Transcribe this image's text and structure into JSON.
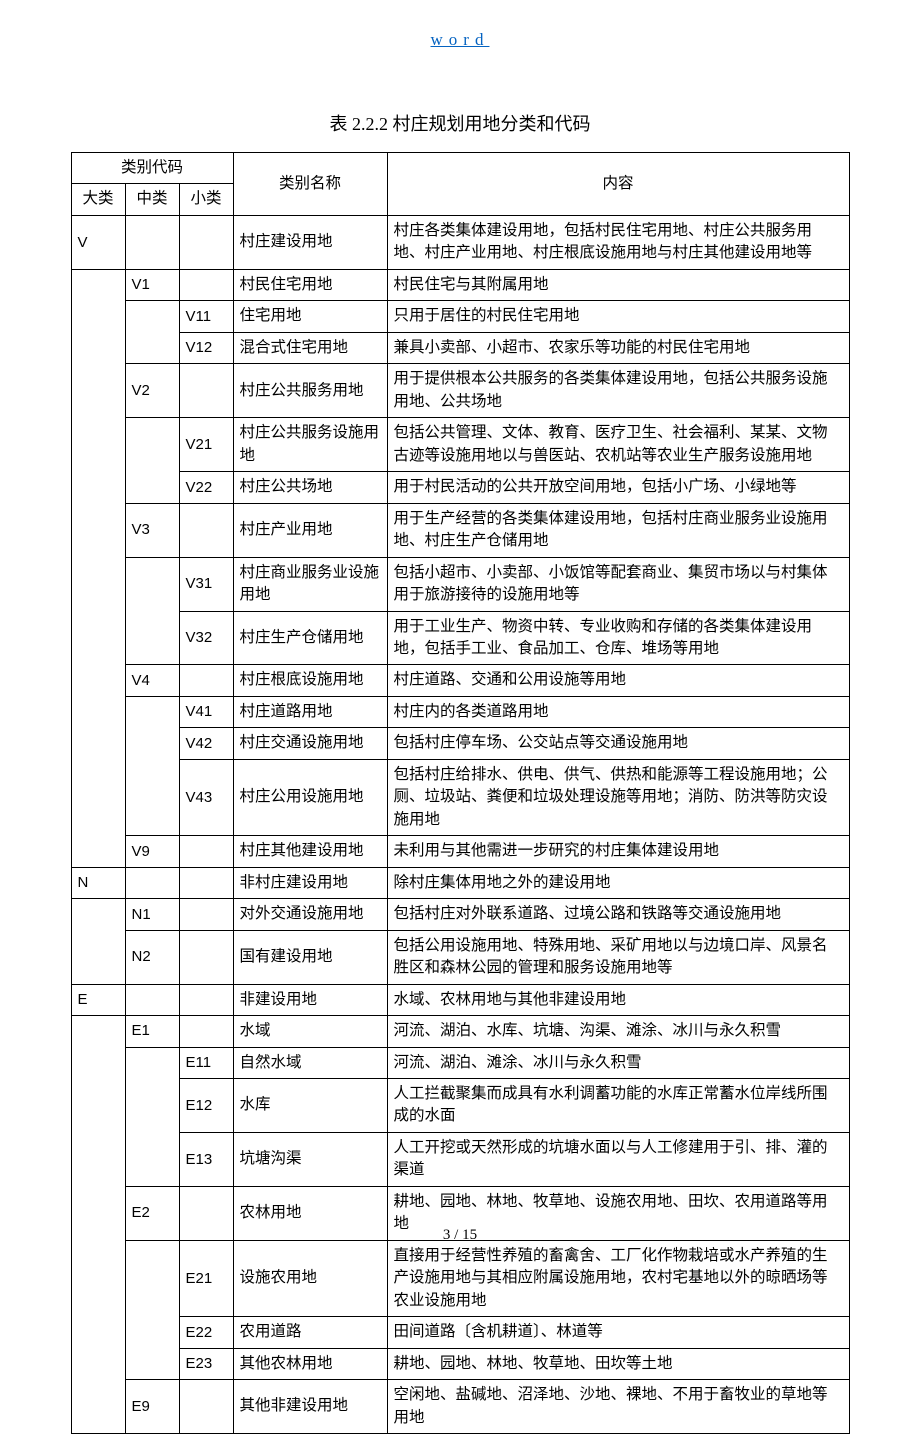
{
  "header": {
    "linkText": "word"
  },
  "title": "表 2.2.2 村庄规划用地分类和代码",
  "columns": {
    "codeGroup": "类别代码",
    "da": "大类",
    "zhong": "中类",
    "xiao": "小类",
    "name": "类别名称",
    "content": "内容"
  },
  "rows": [
    {
      "da": "V",
      "zhong": "",
      "xiao": "",
      "name": "村庄建设用地",
      "content": "村庄各类集体建设用地，包括村民住宅用地、村庄公共服务用地、村庄产业用地、村庄根底设施用地与村庄其他建设用地等"
    },
    {
      "da": "",
      "zhong": "V1",
      "xiao": "",
      "name": "村民住宅用地",
      "content": "村民住宅与其附属用地"
    },
    {
      "da": "",
      "zhong": "",
      "xiao": "V11",
      "name": "住宅用地",
      "content": "只用于居住的村民住宅用地"
    },
    {
      "da": "",
      "zhong": "",
      "xiao": "V12",
      "name": "混合式住宅用地",
      "content": "兼具小卖部、小超市、农家乐等功能的村民住宅用地"
    },
    {
      "da": "",
      "zhong": "V2",
      "xiao": "",
      "name": "村庄公共服务用地",
      "content": "用于提供根本公共服务的各类集体建设用地，包括公共服务设施用地、公共场地"
    },
    {
      "da": "",
      "zhong": "",
      "xiao": "V21",
      "name": "村庄公共服务设施用地",
      "content": "包括公共管理、文体、教育、医疗卫生、社会福利、某某、文物古迹等设施用地以与兽医站、农机站等农业生产服务设施用地"
    },
    {
      "da": "",
      "zhong": "",
      "xiao": "V22",
      "name": "村庄公共场地",
      "content": "用于村民活动的公共开放空间用地，包括小广场、小绿地等"
    },
    {
      "da": "",
      "zhong": "V3",
      "xiao": "",
      "name": "村庄产业用地",
      "content": "用于生产经营的各类集体建设用地，包括村庄商业服务业设施用地、村庄生产仓储用地"
    },
    {
      "da": "",
      "zhong": "",
      "xiao": "V31",
      "name": "村庄商业服务业设施用地",
      "content": "包括小超市、小卖部、小饭馆等配套商业、集贸市场以与村集体用于旅游接待的设施用地等"
    },
    {
      "da": "",
      "zhong": "",
      "xiao": "V32",
      "name": "村庄生产仓储用地",
      "content": "用于工业生产、物资中转、专业收购和存储的各类集体建设用地，包括手工业、食品加工、仓库、堆场等用地"
    },
    {
      "da": "",
      "zhong": "V4",
      "xiao": "",
      "name": "村庄根底设施用地",
      "content": "村庄道路、交通和公用设施等用地"
    },
    {
      "da": "",
      "zhong": "",
      "xiao": "V41",
      "name": "村庄道路用地",
      "content": "村庄内的各类道路用地"
    },
    {
      "da": "",
      "zhong": "",
      "xiao": "V42",
      "name": "村庄交通设施用地",
      "content": "包括村庄停车场、公交站点等交通设施用地"
    },
    {
      "da": "",
      "zhong": "",
      "xiao": "V43",
      "name": "村庄公用设施用地",
      "content": "包括村庄给排水、供电、供气、供热和能源等工程设施用地；公厕、垃圾站、粪便和垃圾处理设施等用地；消防、防洪等防灾设施用地"
    },
    {
      "da": "",
      "zhong": "V9",
      "xiao": "",
      "name": "村庄其他建设用地",
      "content": "未利用与其他需进一步研究的村庄集体建设用地"
    },
    {
      "da": "N",
      "zhong": "",
      "xiao": "",
      "name": "非村庄建设用地",
      "content": "除村庄集体用地之外的建设用地"
    },
    {
      "da": "",
      "zhong": "N1",
      "xiao": "",
      "name": "对外交通设施用地",
      "content": "包括村庄对外联系道路、过境公路和铁路等交通设施用地"
    },
    {
      "da": "",
      "zhong": "N2",
      "xiao": "",
      "name": "国有建设用地",
      "content": "包括公用设施用地、特殊用地、采矿用地以与边境口岸、风景名胜区和森林公园的管理和服务设施用地等"
    },
    {
      "da": "E",
      "zhong": "",
      "xiao": "",
      "name": "非建设用地",
      "content": "水域、农林用地与其他非建设用地"
    },
    {
      "da": "",
      "zhong": "E1",
      "xiao": "",
      "name": "水域",
      "content": "河流、湖泊、水库、坑塘、沟渠、滩涂、冰川与永久积雪"
    },
    {
      "da": "",
      "zhong": "",
      "xiao": "E11",
      "name": "自然水域",
      "content": "河流、湖泊、滩涂、冰川与永久积雪"
    },
    {
      "da": "",
      "zhong": "",
      "xiao": "E12",
      "name": "水库",
      "content": "人工拦截聚集而成具有水利调蓄功能的水库正常蓄水位岸线所围成的水面"
    },
    {
      "da": "",
      "zhong": "",
      "xiao": "E13",
      "name": "坑塘沟渠",
      "content": "人工开挖或天然形成的坑塘水面以与人工修建用于引、排、灌的渠道"
    },
    {
      "da": "",
      "zhong": "E2",
      "xiao": "",
      "name": "农林用地",
      "content": "耕地、园地、林地、牧草地、设施农用地、田坎、农用道路等用地"
    },
    {
      "da": "",
      "zhong": "",
      "xiao": "E21",
      "name": "设施农用地",
      "content": "直接用于经营性养殖的畜禽舍、工厂化作物栽培或水产养殖的生产设施用地与其相应附属设施用地，农村宅基地以外的晾晒场等农业设施用地"
    },
    {
      "da": "",
      "zhong": "",
      "xiao": "E22",
      "name": "农用道路",
      "content": "田间道路〔含机耕道〕、林道等"
    },
    {
      "da": "",
      "zhong": "",
      "xiao": "E23",
      "name": "其他农林用地",
      "content": "耕地、园地、林地、牧草地、田坎等土地"
    },
    {
      "da": "",
      "zhong": "E9",
      "xiao": "",
      "name": "其他非建设用地",
      "content": "空闲地、盐碱地、沼泽地、沙地、裸地、不用于畜牧业的草地等用地"
    }
  ],
  "footer": {
    "pageInfo": "3 / 15"
  }
}
